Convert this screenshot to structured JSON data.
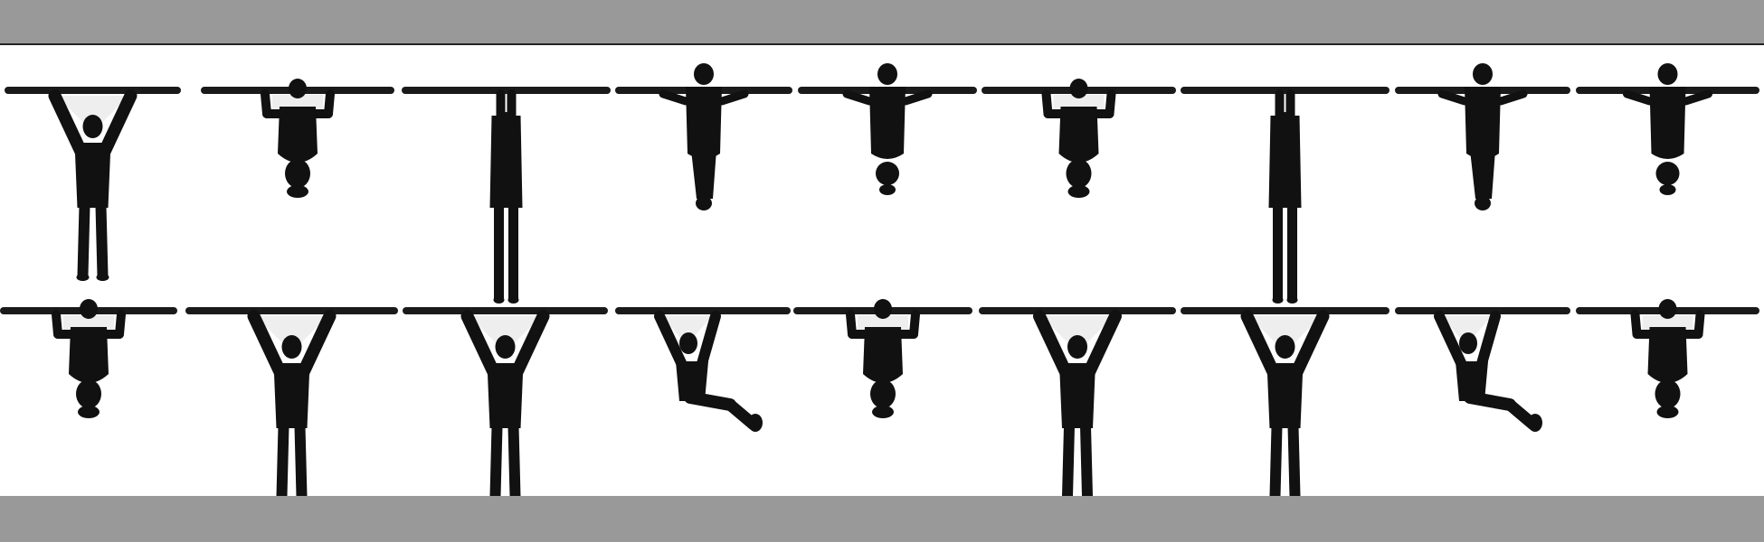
{
  "colors": {
    "band": "#999999",
    "figure": "#111111",
    "bar": "#1a1a1a",
    "stage_background": "#ffffff",
    "arm_gap": "#eeeeee"
  },
  "icons": {
    "figure": "pull-up-figure-icon",
    "bar": "pull-up-bar-icon"
  },
  "rows": [
    {
      "figures": [
        {
          "pose": "wide-grip-hang"
        },
        {
          "pose": "tucked-chin-up"
        },
        {
          "pose": "straight-hang"
        },
        {
          "pose": "narrow-pull-up"
        },
        {
          "pose": "narrow-pull-up-tucked"
        },
        {
          "pose": "tucked-chin-up"
        },
        {
          "pose": "straight-hang"
        },
        {
          "pose": "narrow-pull-up"
        },
        {
          "pose": "narrow-pull-up-tucked"
        }
      ]
    },
    {
      "figures": [
        {
          "pose": "tucked-chin-up"
        },
        {
          "pose": "wide-grip-hang"
        },
        {
          "pose": "wide-grip-hang"
        },
        {
          "pose": "swinging-kick"
        },
        {
          "pose": "tucked-chin-up"
        },
        {
          "pose": "wide-grip-hang"
        },
        {
          "pose": "wide-grip-hang"
        },
        {
          "pose": "swinging-kick"
        },
        {
          "pose": "tucked-chin-up"
        }
      ]
    }
  ]
}
